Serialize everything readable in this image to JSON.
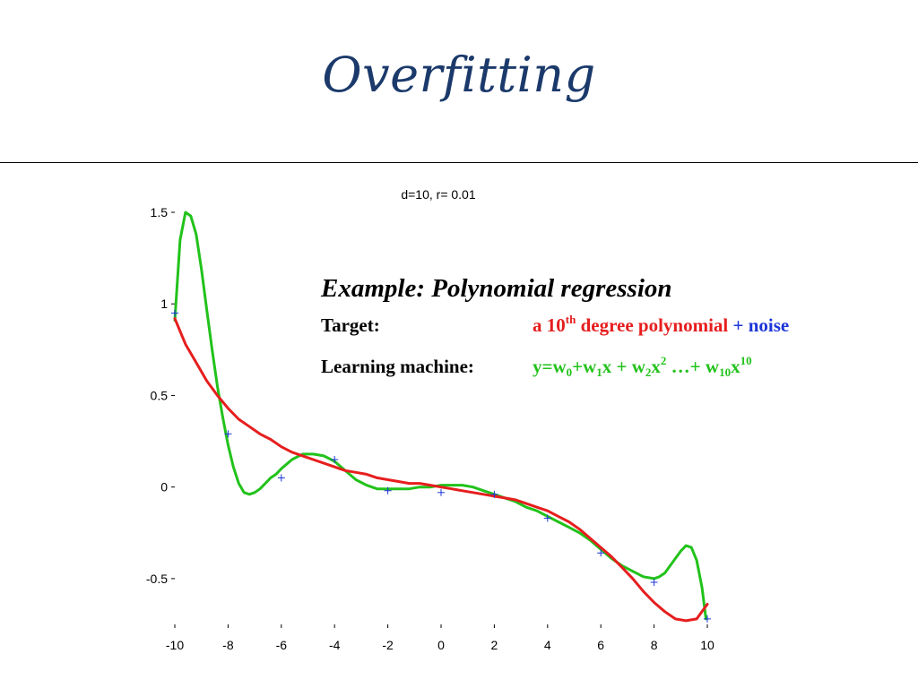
{
  "slide": {
    "title": "Overfitting"
  },
  "annotation": {
    "heading": "Example: Polynomial regression",
    "target_label": "Target:",
    "target_value": {
      "part1": "a 10",
      "part1_sup": "th",
      "part2": " degree polynomial",
      "plus": " + ",
      "noise": "noise"
    },
    "machine_label": "Learning machine:",
    "machine_value": {
      "p1": "y=w",
      "sub0": "0",
      "p2": "+w",
      "sub1": "1",
      "p3": "x + w",
      "sub2": "2",
      "p4": "x",
      "sup2": "2",
      "p5": " …+ w",
      "sub10": "10",
      "p6": "x",
      "sup10": "10"
    },
    "colors": {
      "target": "#e61e1e",
      "noise": "#1c35d8",
      "machine": "#22c21b"
    }
  },
  "chart_data": {
    "type": "line",
    "title": "d=10, r= 0.01",
    "xlabel": "",
    "ylabel": "",
    "xlim": [
      -10,
      10
    ],
    "ylim": [
      -0.75,
      1.5
    ],
    "x_ticks": [
      -10,
      -8,
      -6,
      -4,
      -2,
      0,
      2,
      4,
      6,
      8,
      10
    ],
    "x_tick_labels": [
      "-10",
      "-8",
      "-6",
      "-4",
      "-2",
      "0",
      "2",
      "4",
      "6",
      "8",
      "10"
    ],
    "y_ticks": [
      -0.5,
      0,
      0.5,
      1,
      1.5
    ],
    "y_tick_labels": [
      "-0.5",
      "0",
      "0.5",
      "1",
      "1.5"
    ],
    "grid": false,
    "series": [
      {
        "color": "#22c21b",
        "x": [
          -10,
          -9.8,
          -9.6,
          -9.4,
          -9.2,
          -9.0,
          -8.8,
          -8.6,
          -8.4,
          -8.2,
          -8.0,
          -7.8,
          -7.6,
          -7.4,
          -7.2,
          -7.0,
          -6.8,
          -6.6,
          -6.4,
          -6.2,
          -6.0,
          -5.6,
          -5.2,
          -4.8,
          -4.4,
          -4.0,
          -3.6,
          -3.2,
          -2.8,
          -2.4,
          -2.0,
          -1.6,
          -1.2,
          -0.8,
          -0.4,
          0.0,
          0.4,
          0.8,
          1.2,
          1.6,
          2.0,
          2.4,
          2.8,
          3.2,
          3.6,
          4.0,
          4.4,
          4.8,
          5.2,
          5.6,
          6.0,
          6.4,
          6.8,
          7.2,
          7.6,
          8.0,
          8.2,
          8.4,
          8.6,
          8.8,
          9.0,
          9.2,
          9.4,
          9.6,
          9.8,
          9.95
        ],
        "y": [
          0.91,
          1.35,
          1.5,
          1.48,
          1.38,
          1.19,
          0.97,
          0.75,
          0.55,
          0.38,
          0.23,
          0.11,
          0.02,
          -0.03,
          -0.04,
          -0.03,
          -0.01,
          0.02,
          0.05,
          0.07,
          0.1,
          0.15,
          0.18,
          0.18,
          0.17,
          0.14,
          0.09,
          0.04,
          0.01,
          -0.01,
          -0.01,
          -0.01,
          -0.01,
          0.0,
          0.0,
          0.01,
          0.01,
          0.01,
          0.0,
          -0.02,
          -0.04,
          -0.06,
          -0.08,
          -0.11,
          -0.13,
          -0.16,
          -0.19,
          -0.22,
          -0.25,
          -0.29,
          -0.34,
          -0.39,
          -0.43,
          -0.46,
          -0.49,
          -0.5,
          -0.49,
          -0.47,
          -0.43,
          -0.39,
          -0.35,
          -0.32,
          -0.33,
          -0.4,
          -0.55,
          -0.72
        ]
      },
      {
        "color": "#e61e1e",
        "x": [
          -10,
          -9.6,
          -9.2,
          -8.8,
          -8.4,
          -8.0,
          -7.6,
          -7.2,
          -6.8,
          -6.4,
          -6.0,
          -5.6,
          -5.2,
          -4.8,
          -4.4,
          -4.0,
          -3.6,
          -3.2,
          -2.8,
          -2.4,
          -2.0,
          -1.6,
          -1.2,
          -0.8,
          -0.4,
          0.0,
          0.4,
          0.8,
          1.2,
          1.6,
          2.0,
          2.4,
          2.8,
          3.2,
          3.6,
          4.0,
          4.4,
          4.8,
          5.2,
          5.6,
          6.0,
          6.4,
          6.8,
          7.2,
          7.6,
          8.0,
          8.4,
          8.8,
          9.2,
          9.6,
          10.0
        ],
        "y": [
          0.92,
          0.78,
          0.68,
          0.58,
          0.5,
          0.43,
          0.37,
          0.33,
          0.29,
          0.26,
          0.22,
          0.19,
          0.17,
          0.15,
          0.13,
          0.11,
          0.09,
          0.08,
          0.07,
          0.05,
          0.04,
          0.03,
          0.02,
          0.02,
          0.01,
          0.0,
          -0.01,
          -0.02,
          -0.03,
          -0.04,
          -0.05,
          -0.06,
          -0.07,
          -0.09,
          -0.11,
          -0.13,
          -0.16,
          -0.19,
          -0.23,
          -0.28,
          -0.33,
          -0.38,
          -0.44,
          -0.5,
          -0.57,
          -0.63,
          -0.68,
          -0.72,
          -0.73,
          -0.72,
          -0.64
        ]
      }
    ],
    "markers": {
      "color": "#1c35d8",
      "x": [
        -10.0,
        -8.0,
        -6.0,
        -4.0,
        -2.0,
        0.0,
        2.0,
        4.0,
        6.0,
        8.0,
        10.0
      ],
      "y": [
        0.95,
        0.29,
        0.05,
        0.15,
        -0.02,
        -0.03,
        -0.04,
        -0.17,
        -0.36,
        -0.52,
        -0.72
      ]
    }
  }
}
